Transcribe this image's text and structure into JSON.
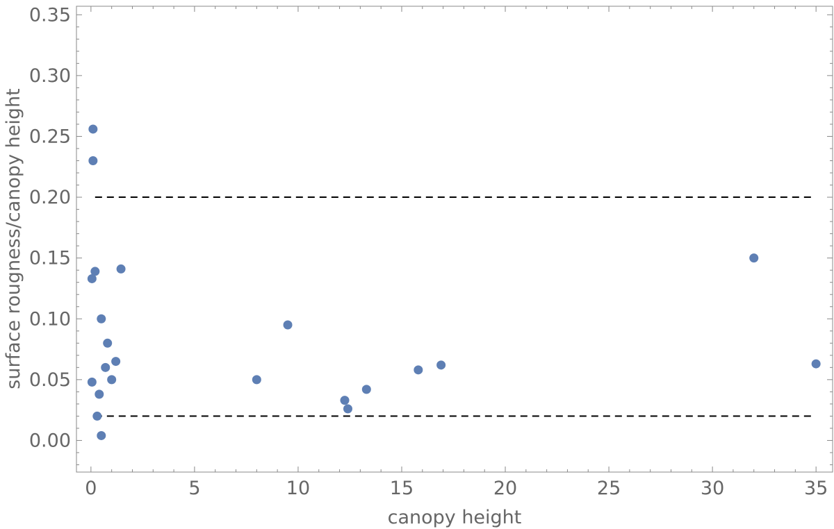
{
  "chart_data": {
    "type": "scatter",
    "title": "",
    "xlabel": "canopy height",
    "ylabel": "surface rougness/canopy height",
    "xlim": [
      -0.7,
      35.8
    ],
    "ylim": [
      -0.026,
      0.357
    ],
    "xticks": [
      0,
      5,
      10,
      15,
      20,
      25,
      30,
      35
    ],
    "xtick_labels": [
      "0",
      "5",
      "10",
      "15",
      "20",
      "25",
      "30",
      "35"
    ],
    "yticks": [
      0.0,
      0.05,
      0.1,
      0.15,
      0.2,
      0.25,
      0.3,
      0.35
    ],
    "ytick_labels": [
      "0.00",
      "0.05",
      "0.10",
      "0.15",
      "0.20",
      "0.25",
      "0.30",
      "0.35"
    ],
    "grid": false,
    "marker_color": "#5e7fb4",
    "reference_lines": [
      {
        "y": 0.2,
        "style": "dashed",
        "color": "#000000"
      },
      {
        "y": 0.02,
        "style": "dashed",
        "color": "#000000"
      }
    ],
    "points": [
      {
        "x": 0.1,
        "y": 0.256
      },
      {
        "x": 0.1,
        "y": 0.23
      },
      {
        "x": 0.2,
        "y": 0.139
      },
      {
        "x": 0.05,
        "y": 0.133
      },
      {
        "x": 1.45,
        "y": 0.141
      },
      {
        "x": 0.5,
        "y": 0.1
      },
      {
        "x": 0.8,
        "y": 0.08
      },
      {
        "x": 1.2,
        "y": 0.065
      },
      {
        "x": 0.7,
        "y": 0.06
      },
      {
        "x": 1.0,
        "y": 0.05
      },
      {
        "x": 0.05,
        "y": 0.048
      },
      {
        "x": 0.4,
        "y": 0.038
      },
      {
        "x": 0.3,
        "y": 0.02
      },
      {
        "x": 0.5,
        "y": 0.004
      },
      {
        "x": 8.0,
        "y": 0.05
      },
      {
        "x": 9.5,
        "y": 0.095
      },
      {
        "x": 12.25,
        "y": 0.033
      },
      {
        "x": 12.4,
        "y": 0.026
      },
      {
        "x": 13.3,
        "y": 0.042
      },
      {
        "x": 15.8,
        "y": 0.058
      },
      {
        "x": 16.9,
        "y": 0.062
      },
      {
        "x": 32.0,
        "y": 0.15
      },
      {
        "x": 35.0,
        "y": 0.063
      }
    ]
  }
}
